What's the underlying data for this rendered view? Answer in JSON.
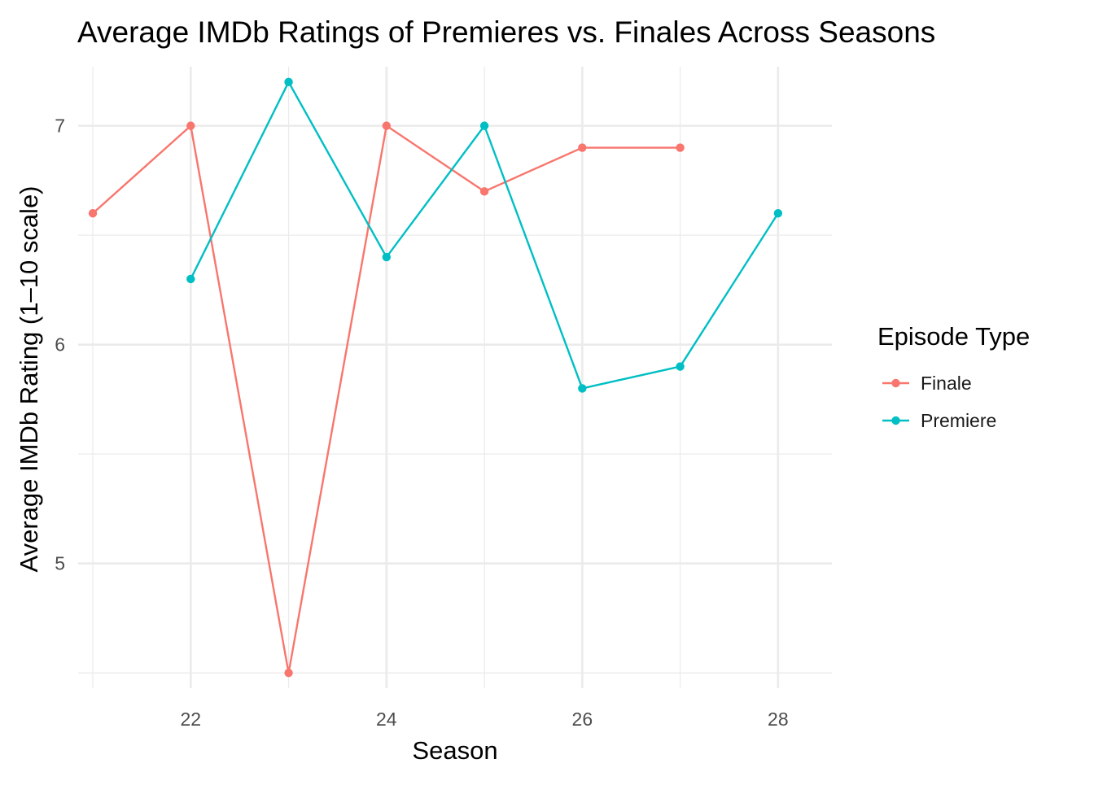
{
  "chart_data": {
    "type": "line",
    "title": "Average IMDb Ratings of Premieres vs. Finales Across Seasons",
    "xlabel": "Season",
    "ylabel": "Average IMDb Rating (1–10 scale)",
    "xlim": [
      20.85,
      28.55
    ],
    "ylim": [
      4.43,
      7.27
    ],
    "x_ticks": [
      22,
      24,
      26,
      28
    ],
    "x_minor_ticks": [
      21,
      23,
      25,
      27
    ],
    "y_ticks": [
      5,
      6,
      7
    ],
    "y_minor_ticks": [
      4.5,
      5.5,
      6.5
    ],
    "grid": true,
    "legend": {
      "title": "Episode Type",
      "position": "right"
    },
    "series": [
      {
        "name": "Finale",
        "color": "#F8766D",
        "x": [
          21,
          22,
          23,
          24,
          25,
          26,
          27
        ],
        "y": [
          6.6,
          7.0,
          4.5,
          7.0,
          6.7,
          6.9,
          6.9
        ]
      },
      {
        "name": "Premiere",
        "color": "#00BFC4",
        "x": [
          22,
          23,
          24,
          25,
          26,
          27,
          28
        ],
        "y": [
          6.3,
          7.2,
          6.4,
          7.0,
          5.8,
          5.9,
          6.6
        ]
      }
    ]
  }
}
